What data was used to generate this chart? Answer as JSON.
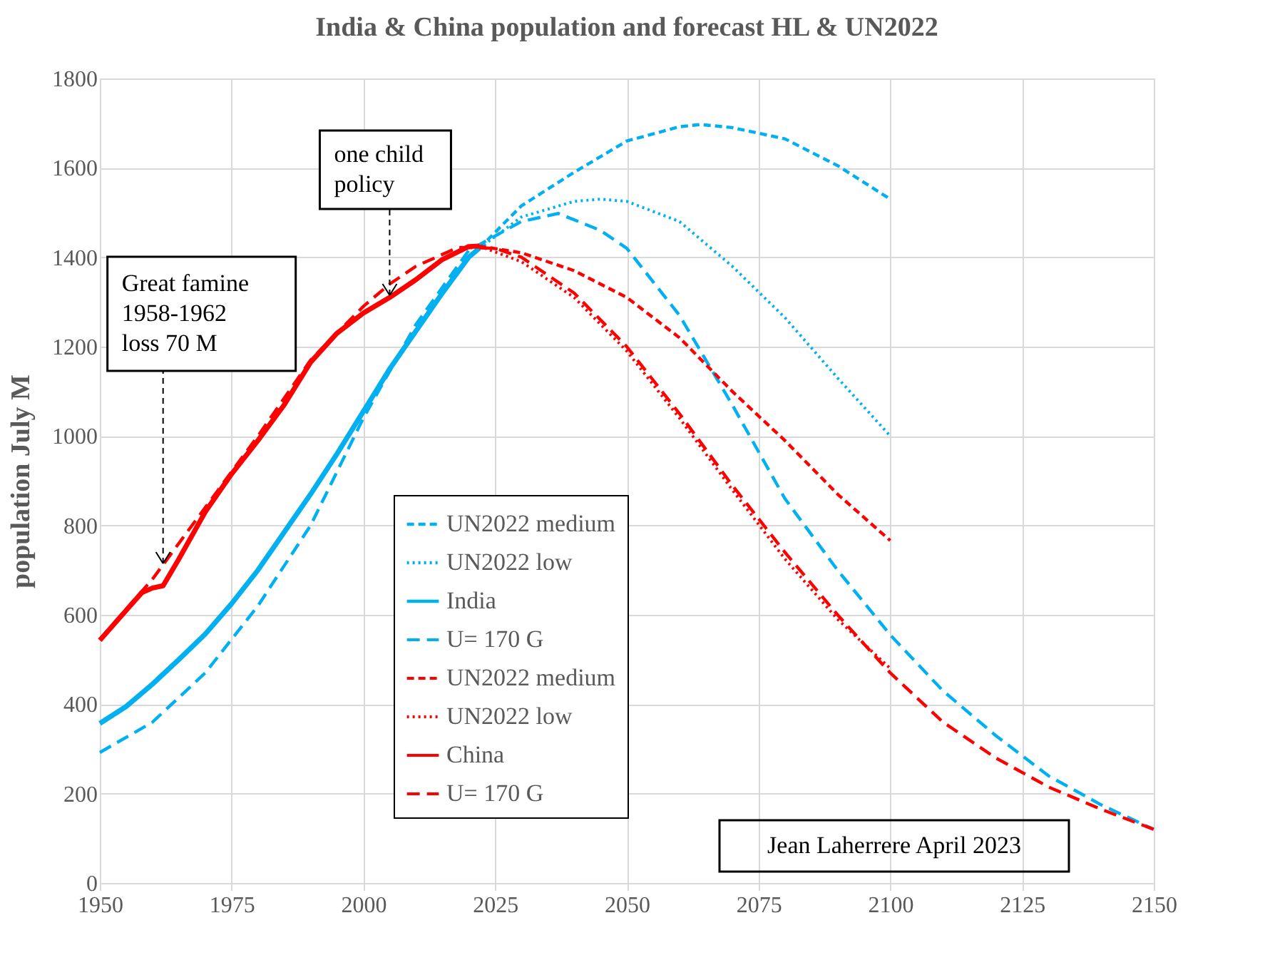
{
  "chart_data": {
    "type": "line",
    "title": "India & China population and forecast HL & UN2022",
    "ylabel": "population July M",
    "xlim": [
      1950,
      2150
    ],
    "xticks": [
      1950,
      1975,
      2000,
      2025,
      2050,
      2075,
      2100,
      2125,
      2150
    ],
    "ylim": [
      0,
      1800
    ],
    "yticks": [
      0,
      200,
      400,
      600,
      800,
      1000,
      1200,
      1400,
      1600,
      1800
    ],
    "grid": true,
    "legend": "bottom",
    "marker": "none",
    "series": [
      {
        "name": "UN2022 medium",
        "color": "#00b0f0",
        "line_style": "dashed",
        "x": [
          2022,
          2030,
          2040,
          2050,
          2060,
          2064,
          2070,
          2080,
          2090,
          2100
        ],
        "values": [
          1420,
          1515,
          1590,
          1660,
          1692,
          1697,
          1690,
          1665,
          1605,
          1530
        ]
      },
      {
        "name": "UN2022 low",
        "color": "#00b0f0",
        "line_style": "dotted",
        "x": [
          2022,
          2030,
          2040,
          2045,
          2050,
          2060,
          2070,
          2080,
          2090,
          2100
        ],
        "values": [
          1420,
          1490,
          1525,
          1530,
          1525,
          1480,
          1380,
          1265,
          1130,
          1000
        ]
      },
      {
        "name": "India",
        "color": "#00b0f0",
        "line_style": "solid",
        "x": [
          1950,
          1955,
          1960,
          1965,
          1970,
          1975,
          1980,
          1985,
          1990,
          1995,
          2000,
          2005,
          2010,
          2015,
          2020,
          2022
        ],
        "values": [
          357,
          395,
          445,
          500,
          557,
          625,
          700,
          785,
          870,
          960,
          1055,
          1150,
          1235,
          1320,
          1400,
          1420
        ]
      },
      {
        "name": "U= 170 G",
        "color": "#00b0f0",
        "line_style": "dashed",
        "x": [
          1950,
          1960,
          1970,
          1980,
          1990,
          2000,
          2010,
          2020,
          2030,
          2037,
          2045,
          2050,
          2060,
          2070,
          2080,
          2090,
          2100,
          2110,
          2120,
          2130,
          2140,
          2150
        ],
        "values": [
          292,
          360,
          470,
          620,
          800,
          1040,
          1250,
          1415,
          1480,
          1498,
          1460,
          1420,
          1270,
          1070,
          860,
          700,
          555,
          430,
          330,
          240,
          175,
          120
        ]
      },
      {
        "name": "UN2022 medium",
        "color": "#ff0000",
        "line_style": "dashed",
        "x": [
          2022,
          2030,
          2040,
          2050,
          2060,
          2070,
          2080,
          2090,
          2100
        ],
        "values": [
          1425,
          1410,
          1370,
          1310,
          1220,
          1100,
          990,
          870,
          766
        ]
      },
      {
        "name": "UN2022 low",
        "color": "#ff0000",
        "line_style": "dotted",
        "x": [
          2022,
          2030,
          2040,
          2050,
          2060,
          2070,
          2080,
          2090,
          2100
        ],
        "values": [
          1425,
          1390,
          1310,
          1190,
          1040,
          880,
          725,
          590,
          480
        ]
      },
      {
        "name": "China",
        "color": "#ff0000",
        "line_style": "solid",
        "x": [
          1950,
          1955,
          1958,
          1960,
          1962,
          1965,
          1970,
          1975,
          1980,
          1985,
          1990,
          1995,
          2000,
          2005,
          2010,
          2015,
          2020,
          2022
        ],
        "values": [
          543,
          610,
          650,
          660,
          665,
          725,
          830,
          915,
          990,
          1070,
          1165,
          1230,
          1275,
          1310,
          1350,
          1395,
          1424,
          1425
        ]
      },
      {
        "name": "U= 170 G",
        "color": "#ff0000",
        "line_style": "dashed",
        "x": [
          1950,
          1960,
          1970,
          1980,
          1990,
          2000,
          2005,
          2010,
          2018,
          2025,
          2030,
          2040,
          2050,
          2060,
          2070,
          2080,
          2090,
          2100,
          2110,
          2120,
          2130,
          2140,
          2150
        ],
        "values": [
          545,
          680,
          840,
          1000,
          1170,
          1290,
          1340,
          1380,
          1422,
          1420,
          1400,
          1320,
          1200,
          1050,
          890,
          740,
          600,
          470,
          360,
          280,
          215,
          165,
          120
        ]
      }
    ],
    "annotations": [
      {
        "text": "Great famine\n1958-1962\nloss 70 M",
        "x": 1962,
        "y": 715
      },
      {
        "text": "one child\npolicy",
        "x": 2005,
        "y": 1315
      },
      "Jean Laherrere April 2023"
    ]
  }
}
